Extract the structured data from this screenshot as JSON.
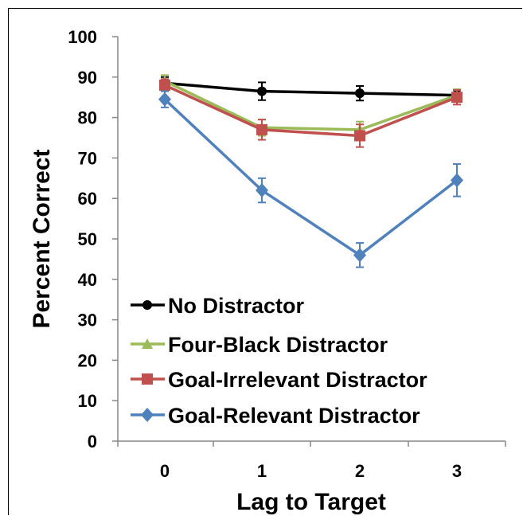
{
  "chart_data": {
    "type": "line",
    "xlabel": "Lag to Target",
    "ylabel": "Percent Correct",
    "x": [
      0,
      1,
      2,
      3
    ],
    "x_ticks": [
      "0",
      "1",
      "2",
      "3"
    ],
    "ylim": [
      0,
      100
    ],
    "y_ticks": [
      "0",
      "10",
      "20",
      "30",
      "40",
      "50",
      "60",
      "70",
      "80",
      "90",
      "100"
    ],
    "grid": false,
    "legend_position": "bottom-left",
    "series": [
      {
        "name": "No Distractor",
        "color": "#000000",
        "marker": "circle",
        "values": [
          88.5,
          86.5,
          86,
          85.5
        ],
        "errors": [
          1.5,
          2.2,
          1.8,
          1.2
        ]
      },
      {
        "name": "Four-Black Distractor",
        "color": "#9bbb59",
        "marker": "triangle",
        "values": [
          89,
          77.5,
          77,
          85.5
        ],
        "errors": [
          1.5,
          2.0,
          2.0,
          1.5
        ]
      },
      {
        "name": "Goal-Irrelevant Distractor",
        "color": "#c0504d",
        "marker": "square",
        "values": [
          88,
          77,
          75.5,
          85
        ],
        "errors": [
          1.5,
          2.5,
          2.8,
          1.8
        ]
      },
      {
        "name": "Goal-Relevant Distractor",
        "color": "#4f81bd",
        "marker": "diamond",
        "values": [
          84.5,
          62,
          46,
          64.5
        ],
        "errors": [
          2.0,
          3.0,
          3.0,
          4.0
        ]
      }
    ]
  }
}
